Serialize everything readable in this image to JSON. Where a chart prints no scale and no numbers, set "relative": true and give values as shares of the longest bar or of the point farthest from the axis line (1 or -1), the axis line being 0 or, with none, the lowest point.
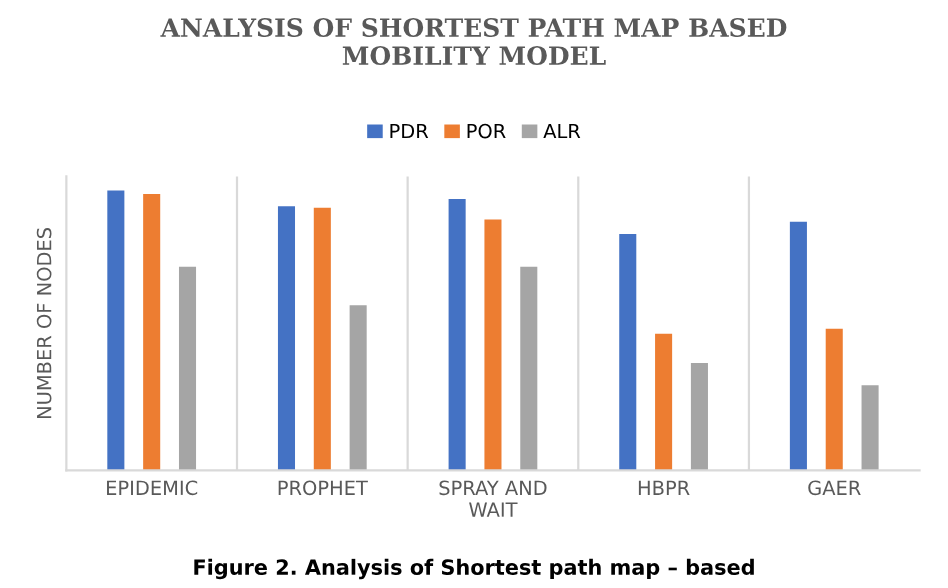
{
  "chart_data": {
    "type": "bar",
    "title": "ANALYSIS OF SHORTEST PATH MAP BASED\nMOBILITY MODEL",
    "ylabel": "NUMBER OF NODES",
    "categories": [
      "EPIDEMIC",
      "PROPHET",
      "SPRAY AND\nWAIT",
      "HBPR",
      "GAER"
    ],
    "series": [
      {
        "name": "PDR",
        "color": "#4472c4",
        "values": [
          1,
          0.943,
          0.969,
          0.844,
          0.888
        ]
      },
      {
        "name": "POR",
        "color": "#ed7d31",
        "values": [
          0.987,
          0.938,
          0.896,
          0.488,
          0.506
        ]
      },
      {
        "name": "ALR",
        "color": "#a5a5a5",
        "values": [
          0.727,
          0.59,
          0.727,
          0.384,
          0.304
        ]
      }
    ],
    "relative": true,
    "grid": "x",
    "legend": "top",
    "annotations": [
      "Figure 2. Analysis of Shortest path map – based"
    ]
  }
}
